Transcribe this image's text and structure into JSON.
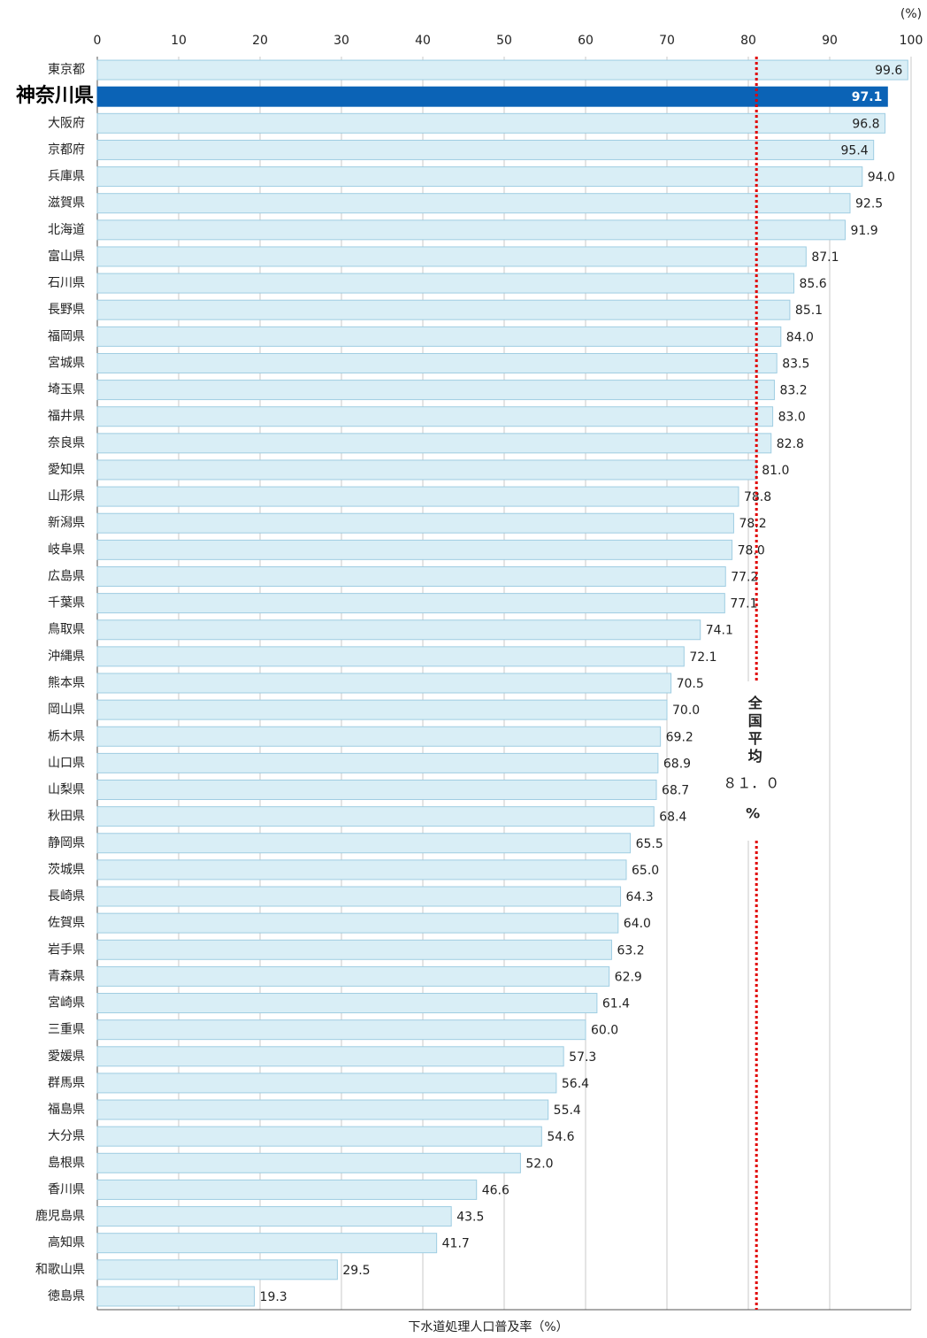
{
  "chart_data": {
    "type": "bar",
    "orientation": "horizontal",
    "x_label": "下水道処理人口普及率（%）",
    "unit": "(%)",
    "categories": [
      "東京都",
      "神奈川県",
      "大阪府",
      "京都府",
      "兵庫県",
      "滋賀県",
      "北海道",
      "富山県",
      "石川県",
      "長野県",
      "福岡県",
      "宮城県",
      "埼玉県",
      "福井県",
      "奈良県",
      "愛知県",
      "山形県",
      "新潟県",
      "岐阜県",
      "広島県",
      "千葉県",
      "鳥取県",
      "沖縄県",
      "熊本県",
      "岡山県",
      "栃木県",
      "山口県",
      "山梨県",
      "秋田県",
      "静岡県",
      "茨城県",
      "長崎県",
      "佐賀県",
      "岩手県",
      "青森県",
      "宮崎県",
      "三重県",
      "愛媛県",
      "群馬県",
      "福島県",
      "大分県",
      "島根県",
      "香川県",
      "鹿児島県",
      "高知県",
      "和歌山県",
      "徳島県"
    ],
    "values": [
      99.6,
      97.1,
      96.8,
      95.4,
      94.0,
      92.5,
      91.9,
      87.1,
      85.6,
      85.1,
      84.0,
      83.5,
      83.2,
      83.0,
      82.8,
      81.0,
      78.8,
      78.2,
      78.0,
      77.2,
      77.1,
      74.1,
      72.1,
      70.5,
      70.0,
      69.2,
      68.9,
      68.7,
      68.4,
      65.5,
      65.0,
      64.3,
      64.0,
      63.2,
      62.9,
      61.4,
      60.0,
      57.3,
      56.4,
      55.4,
      54.6,
      52.0,
      46.6,
      43.5,
      41.7,
      29.5,
      19.3
    ],
    "value_labels": [
      "99.6",
      "97.1",
      "96.8",
      "95.4",
      "94.0",
      "92.5",
      "91.9",
      "87.1",
      "85.6",
      "85.1",
      "84.0",
      "83.5",
      "83.2",
      "83.0",
      "82.8",
      "81.0",
      "78.8",
      "78.2",
      "78.0",
      "77.2",
      "77.1",
      "74.1",
      "72.1",
      "70.5",
      "70.0",
      "69.2",
      "68.9",
      "68.7",
      "68.4",
      "65.5",
      "65.0",
      "64.3",
      "64.0",
      "63.2",
      "62.9",
      "61.4",
      "60.0",
      "57.3",
      "56.4",
      "55.4",
      "54.6",
      "52.0",
      "46.6",
      "43.5",
      "41.7",
      "29.5",
      "19.3"
    ],
    "color": "#d9eef6",
    "highlight": {
      "category": "神奈川県",
      "color": "#0b63b6"
    },
    "xlim": [
      0,
      100
    ],
    "xticks": [
      0,
      10,
      20,
      30,
      40,
      50,
      60,
      70,
      80,
      90,
      100
    ],
    "grid": true,
    "reference_line": {
      "value": 81.0,
      "label": "全国平均",
      "value_label": "８１．０",
      "unit": "%",
      "color": "#e00000"
    }
  }
}
